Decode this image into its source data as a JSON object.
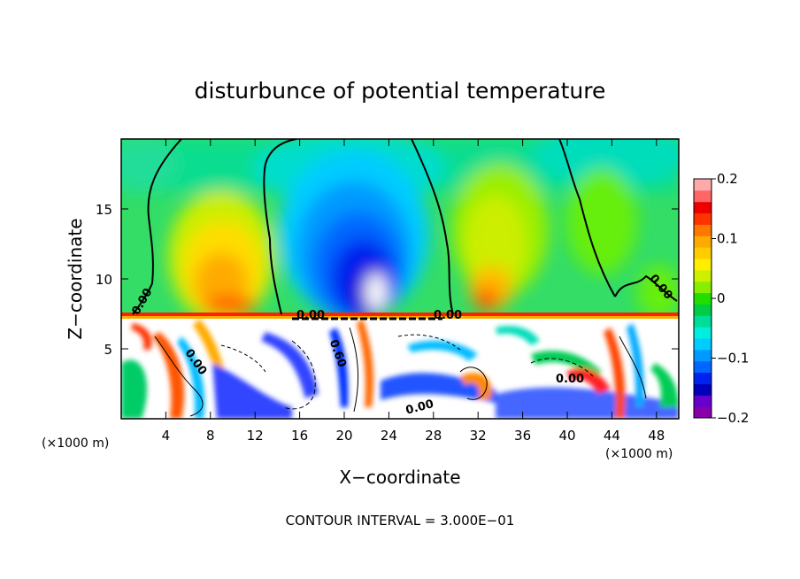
{
  "chart_data": {
    "type": "heatmap",
    "title": "disturbunce of potential temperature",
    "xlabel": "X−coordinate",
    "ylabel": "Z−coordinate",
    "x_unit_left": "(×1000 m)",
    "x_unit_right": "(×1000 m)",
    "xlim": [
      0,
      50
    ],
    "ylim": [
      0,
      20
    ],
    "x_ticks": [
      {
        "value": 4,
        "label": "4"
      },
      {
        "value": 8,
        "label": "8"
      },
      {
        "value": 12,
        "label": "12"
      },
      {
        "value": 16,
        "label": "16"
      },
      {
        "value": 20,
        "label": "20"
      },
      {
        "value": 24,
        "label": "24"
      },
      {
        "value": 28,
        "label": "28"
      },
      {
        "value": 32,
        "label": "32"
      },
      {
        "value": 36,
        "label": "36"
      },
      {
        "value": 40,
        "label": "40"
      },
      {
        "value": 44,
        "label": "44"
      },
      {
        "value": 48,
        "label": "48"
      }
    ],
    "y_ticks": [
      {
        "value": 5,
        "label": "5"
      },
      {
        "value": 10,
        "label": "10"
      },
      {
        "value": 15,
        "label": "15"
      }
    ],
    "colorbar": {
      "min": -0.2,
      "max": 0.2,
      "ticks": [
        {
          "value": 0.2,
          "label": "0.2"
        },
        {
          "value": 0.1,
          "label": "0.1"
        },
        {
          "value": 0,
          "label": "0"
        },
        {
          "value": -0.1,
          "label": "−0.1"
        },
        {
          "value": -0.2,
          "label": "−0.2"
        }
      ],
      "colors": [
        "#8800aa",
        "#6600cc",
        "#0000bb",
        "#0022ee",
        "#0066ff",
        "#0099ff",
        "#00ccff",
        "#00eedd",
        "#00dd99",
        "#00cc44",
        "#22dd00",
        "#88ee00",
        "#ccf000",
        "#ffee00",
        "#ffcc00",
        "#ffaa00",
        "#ff7700",
        "#ff3300",
        "#ee0000",
        "#ff6666",
        "#ffaaaa"
      ]
    },
    "field_features": [
      {
        "name": "warm-anomaly-west",
        "x": 9,
        "z": 12,
        "value": 0.11
      },
      {
        "name": "cold-anomaly-center",
        "x": 22,
        "z": 11,
        "value": -0.18
      },
      {
        "name": "warm-anomaly-east",
        "x": 33,
        "z": 9.5,
        "value": 0.09
      },
      {
        "name": "cool-top-center",
        "x": 22,
        "z": 17,
        "value": -0.06
      },
      {
        "name": "cool-top-east",
        "x": 45,
        "z": 19,
        "value": -0.04
      }
    ],
    "contour_labels": [
      "0.00",
      "0.00",
      "0.00",
      "0.00",
      "0.00",
      "0.60",
      "0.00",
      "0.00"
    ],
    "contour_interval_text": "CONTOUR INTERVAL = 3.000E−01"
  }
}
